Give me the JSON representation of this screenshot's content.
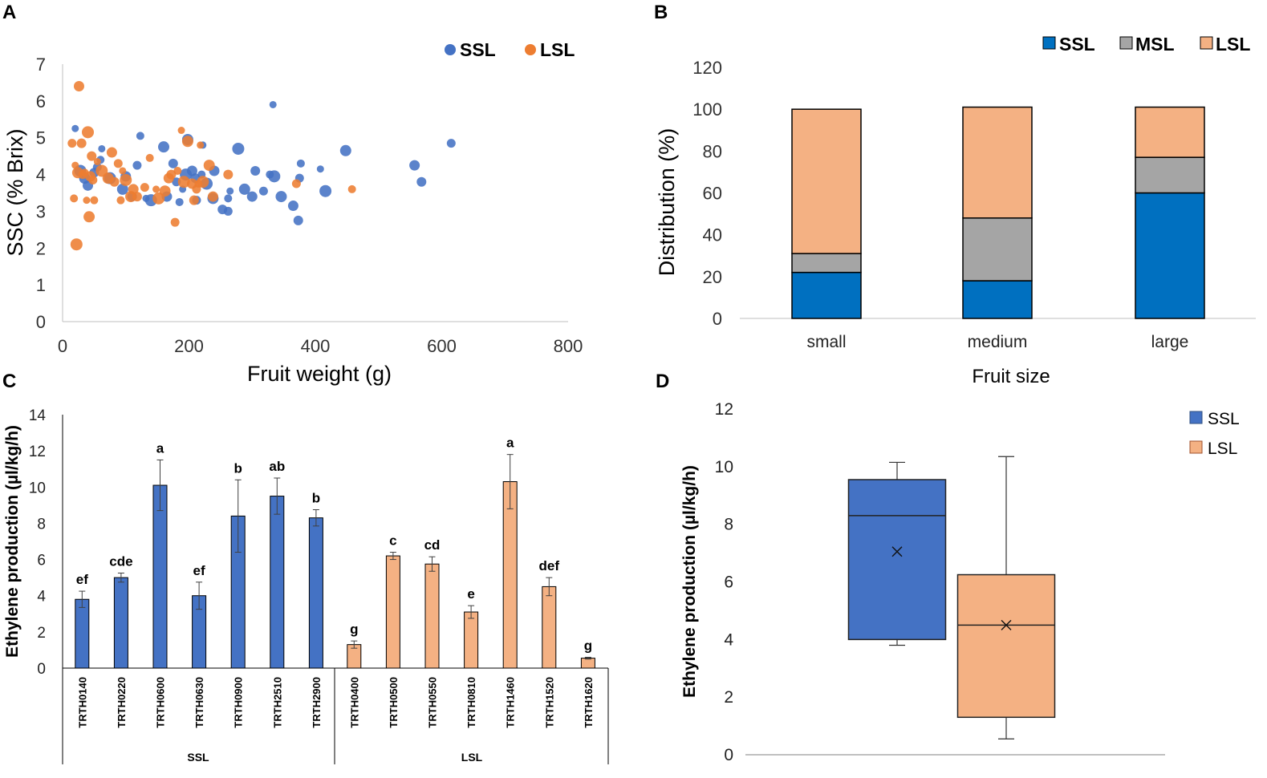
{
  "colors": {
    "ssl": "#4472c4",
    "lsl": "#f4b183",
    "scatter_ssl": "#4472c4",
    "scatter_lsl": "#ed7d31",
    "msl": "#a5a5a5",
    "b_ssl": "#0070c0",
    "b_lsl": "#f4b183",
    "axis": "#000000",
    "grid_axis": "#bfbfbf",
    "errbar": "#404040"
  },
  "chart_data": [
    {
      "panel": "A",
      "type": "scatter",
      "title": "",
      "xlabel": "Fruit weight (g)",
      "ylabel": "SSC (% Brix)",
      "xlim": [
        0,
        800
      ],
      "ylim": [
        0,
        7
      ],
      "xticks": [
        "0",
        "200",
        "400",
        "600",
        "800"
      ],
      "yticks": [
        "0",
        "1",
        "2",
        "3",
        "4",
        "5",
        "6",
        "7"
      ],
      "legend": [
        "SSL",
        "LSL"
      ],
      "legend_position": "top-right",
      "series": [
        {
          "name": "SSL",
          "points": [
            {
              "x": 20,
              "y": 5.25
            },
            {
              "x": 28,
              "y": 4.1
            },
            {
              "x": 35,
              "y": 3.9
            },
            {
              "x": 40,
              "y": 3.7
            },
            {
              "x": 50,
              "y": 4.05
            },
            {
              "x": 55,
              "y": 4.2
            },
            {
              "x": 60,
              "y": 4.4
            },
            {
              "x": 62,
              "y": 4.7
            },
            {
              "x": 75,
              "y": 3.9
            },
            {
              "x": 95,
              "y": 3.6
            },
            {
              "x": 100,
              "y": 3.95
            },
            {
              "x": 110,
              "y": 3.4
            },
            {
              "x": 118,
              "y": 4.25
            },
            {
              "x": 123,
              "y": 5.05
            },
            {
              "x": 132,
              "y": 3.35
            },
            {
              "x": 140,
              "y": 3.3
            },
            {
              "x": 160,
              "y": 4.75
            },
            {
              "x": 165,
              "y": 3.4
            },
            {
              "x": 175,
              "y": 4.3
            },
            {
              "x": 180,
              "y": 3.8
            },
            {
              "x": 185,
              "y": 3.25
            },
            {
              "x": 190,
              "y": 3.6
            },
            {
              "x": 195,
              "y": 4.0
            },
            {
              "x": 198,
              "y": 4.95
            },
            {
              "x": 205,
              "y": 4.1
            },
            {
              "x": 210,
              "y": 3.9
            },
            {
              "x": 212,
              "y": 3.3
            },
            {
              "x": 220,
              "y": 4.0
            },
            {
              "x": 222,
              "y": 4.8
            },
            {
              "x": 228,
              "y": 3.75
            },
            {
              "x": 238,
              "y": 3.35
            },
            {
              "x": 240,
              "y": 4.1
            },
            {
              "x": 253,
              "y": 3.05
            },
            {
              "x": 262,
              "y": 3.0
            },
            {
              "x": 262,
              "y": 3.35
            },
            {
              "x": 265,
              "y": 3.55
            },
            {
              "x": 278,
              "y": 4.7
            },
            {
              "x": 288,
              "y": 3.6
            },
            {
              "x": 300,
              "y": 3.4
            },
            {
              "x": 305,
              "y": 4.1
            },
            {
              "x": 318,
              "y": 3.55
            },
            {
              "x": 328,
              "y": 4.0
            },
            {
              "x": 333,
              "y": 5.9
            },
            {
              "x": 335,
              "y": 3.95
            },
            {
              "x": 346,
              "y": 3.4
            },
            {
              "x": 365,
              "y": 3.15
            },
            {
              "x": 373,
              "y": 2.75
            },
            {
              "x": 375,
              "y": 3.9
            },
            {
              "x": 377,
              "y": 4.3
            },
            {
              "x": 408,
              "y": 4.15
            },
            {
              "x": 416,
              "y": 3.55
            },
            {
              "x": 448,
              "y": 4.65
            },
            {
              "x": 557,
              "y": 4.25
            },
            {
              "x": 568,
              "y": 3.8
            },
            {
              "x": 615,
              "y": 4.85
            }
          ]
        },
        {
          "name": "LSL",
          "points": [
            {
              "x": 15,
              "y": 4.85
            },
            {
              "x": 18,
              "y": 3.35
            },
            {
              "x": 20,
              "y": 4.25
            },
            {
              "x": 22,
              "y": 2.1
            },
            {
              "x": 24,
              "y": 4.05
            },
            {
              "x": 26,
              "y": 6.4
            },
            {
              "x": 30,
              "y": 4.85
            },
            {
              "x": 32,
              "y": 4.0
            },
            {
              "x": 35,
              "y": 4.05
            },
            {
              "x": 38,
              "y": 3.3
            },
            {
              "x": 40,
              "y": 5.15
            },
            {
              "x": 42,
              "y": 2.85
            },
            {
              "x": 44,
              "y": 3.95
            },
            {
              "x": 46,
              "y": 4.5
            },
            {
              "x": 48,
              "y": 3.85
            },
            {
              "x": 50,
              "y": 3.3
            },
            {
              "x": 55,
              "y": 4.35
            },
            {
              "x": 62,
              "y": 4.1
            },
            {
              "x": 72,
              "y": 3.9
            },
            {
              "x": 78,
              "y": 4.6
            },
            {
              "x": 82,
              "y": 3.8
            },
            {
              "x": 88,
              "y": 4.3
            },
            {
              "x": 92,
              "y": 3.3
            },
            {
              "x": 95,
              "y": 4.1
            },
            {
              "x": 100,
              "y": 3.85
            },
            {
              "x": 108,
              "y": 3.4
            },
            {
              "x": 112,
              "y": 3.6
            },
            {
              "x": 118,
              "y": 3.4
            },
            {
              "x": 130,
              "y": 3.65
            },
            {
              "x": 138,
              "y": 4.45
            },
            {
              "x": 148,
              "y": 3.6
            },
            {
              "x": 152,
              "y": 3.35
            },
            {
              "x": 162,
              "y": 3.55
            },
            {
              "x": 168,
              "y": 3.9
            },
            {
              "x": 172,
              "y": 4.0
            },
            {
              "x": 178,
              "y": 2.7
            },
            {
              "x": 182,
              "y": 4.1
            },
            {
              "x": 188,
              "y": 5.2
            },
            {
              "x": 192,
              "y": 3.8
            },
            {
              "x": 198,
              "y": 4.9
            },
            {
              "x": 205,
              "y": 3.75
            },
            {
              "x": 208,
              "y": 3.3
            },
            {
              "x": 212,
              "y": 3.6
            },
            {
              "x": 215,
              "y": 3.75
            },
            {
              "x": 218,
              "y": 4.8
            },
            {
              "x": 222,
              "y": 3.8
            },
            {
              "x": 232,
              "y": 4.25
            },
            {
              "x": 238,
              "y": 3.4
            },
            {
              "x": 262,
              "y": 4.0
            },
            {
              "x": 370,
              "y": 3.75
            },
            {
              "x": 458,
              "y": 3.6
            }
          ]
        }
      ]
    },
    {
      "panel": "B",
      "type": "bar",
      "stacked": true,
      "title": "",
      "xlabel": "Fruit size",
      "ylabel": "Distribution (%)",
      "ylim": [
        0,
        120
      ],
      "yticks": [
        "0",
        "20",
        "40",
        "60",
        "80",
        "100",
        "120"
      ],
      "categories": [
        "small",
        "medium",
        "large"
      ],
      "legend": [
        "SSL",
        "MSL",
        "LSL"
      ],
      "legend_position": "top-right",
      "series": [
        {
          "name": "SSL",
          "values": [
            22,
            18,
            60
          ]
        },
        {
          "name": "MSL",
          "values": [
            9,
            30,
            17
          ]
        },
        {
          "name": "LSL",
          "values": [
            69,
            53,
            24
          ]
        }
      ]
    },
    {
      "panel": "C",
      "type": "bar",
      "title": "",
      "xlabel": "",
      "ylabel": "Ethylene production (µl/kg/h)",
      "ylim": [
        0,
        14
      ],
      "yticks": [
        "0",
        "2",
        "4",
        "6",
        "8",
        "10",
        "12",
        "14"
      ],
      "groups": [
        {
          "name": "SSL",
          "bars": [
            {
              "label": "TRTH0140",
              "value": 3.8,
              "err": 0.45,
              "letter": "ef"
            },
            {
              "label": "TRTH0220",
              "value": 5.0,
              "err": 0.25,
              "letter": "cde"
            },
            {
              "label": "TRTH0600",
              "value": 10.1,
              "err": 1.4,
              "letter": "a"
            },
            {
              "label": "TRTH0630",
              "value": 4.0,
              "err": 0.75,
              "letter": "ef"
            },
            {
              "label": "TRTH0900",
              "value": 8.4,
              "err": 2.0,
              "letter": "b"
            },
            {
              "label": "TRTH2510",
              "value": 9.5,
              "err": 1.0,
              "letter": "ab"
            },
            {
              "label": "TRTH2900",
              "value": 8.3,
              "err": 0.45,
              "letter": "b"
            }
          ]
        },
        {
          "name": "LSL",
          "bars": [
            {
              "label": "TRTH0400",
              "value": 1.3,
              "err": 0.2,
              "letter": "g"
            },
            {
              "label": "TRTH0500",
              "value": 6.2,
              "err": 0.2,
              "letter": "c"
            },
            {
              "label": "TRTH0550",
              "value": 5.75,
              "err": 0.4,
              "letter": "cd"
            },
            {
              "label": "TRTH0810",
              "value": 3.1,
              "err": 0.35,
              "letter": "e"
            },
            {
              "label": "TRTH1460",
              "value": 10.3,
              "err": 1.5,
              "letter": "a"
            },
            {
              "label": "TRTH1520",
              "value": 4.5,
              "err": 0.5,
              "letter": "def"
            },
            {
              "label": "TRTH1620",
              "value": 0.55,
              "err": 0.05,
              "letter": "g"
            }
          ]
        }
      ]
    },
    {
      "panel": "D",
      "type": "box",
      "title": "",
      "xlabel": "",
      "ylabel": "Ethylene production (µl/kg/h)",
      "ylim": [
        0,
        12
      ],
      "yticks": [
        "0",
        "2",
        "4",
        "6",
        "8",
        "10",
        "12"
      ],
      "legend": [
        "SSL",
        "LSL"
      ],
      "legend_position": "top-right",
      "series": [
        {
          "name": "SSL",
          "min": 3.8,
          "q1": 4.0,
          "median": 8.3,
          "q3": 9.55,
          "max": 10.15,
          "mean": 7.05
        },
        {
          "name": "LSL",
          "min": 0.55,
          "q1": 1.3,
          "median": 4.5,
          "q3": 6.25,
          "max": 10.35,
          "mean": 4.5
        }
      ]
    }
  ]
}
